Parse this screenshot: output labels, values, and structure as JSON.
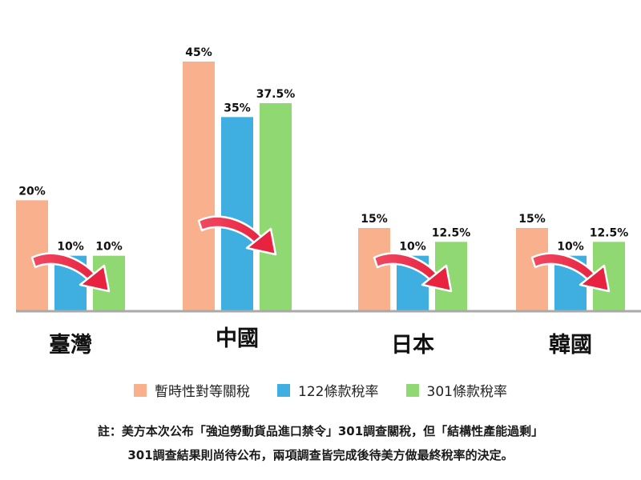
{
  "chart_data": {
    "type": "bar",
    "categories": [
      "臺灣",
      "中國",
      "日本",
      "韓國"
    ],
    "series": [
      {
        "name": "暫時性對等關稅",
        "color": "#F9B08D",
        "values": [
          20,
          45,
          15,
          15
        ],
        "labels": [
          "20%",
          "45%",
          "15%",
          "15%"
        ]
      },
      {
        "name": "122條款稅率",
        "color": "#3FAEE0",
        "values": [
          10,
          35,
          10,
          10
        ],
        "labels": [
          "10%",
          "35%",
          "10%",
          "10%"
        ]
      },
      {
        "name": "301條款稅率",
        "color": "#8FD872",
        "values": [
          10,
          37.5,
          12.5,
          12.5
        ],
        "labels": [
          "10%",
          "37.5%",
          "12.5%",
          "12.5%"
        ]
      }
    ],
    "ylim": [
      0,
      45
    ],
    "legend": "bottom",
    "grid": false,
    "arrow_color": "#EE3152"
  },
  "notes": [
    "註：美方本次公布「強迫勞動貨品進口禁令」301調查關稅，但「結構性產能過剩」",
    "301調查結果則尚待公布，兩項調查皆完成後待美方做最終稅率的決定。"
  ]
}
